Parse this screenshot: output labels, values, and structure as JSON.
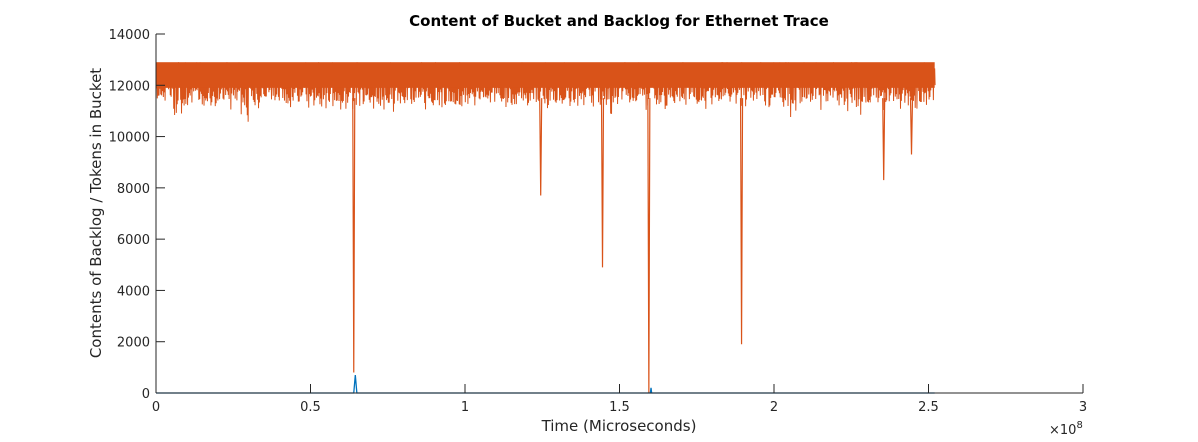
{
  "chart_data": {
    "type": "line",
    "title": "Content of Bucket and Backlog for Ethernet Trace",
    "xlabel": "Time (Microseconds)",
    "ylabel": "Contents of Backlog / Tokens in Bucket",
    "x_multiplier": {
      "base": "×10",
      "exponent": "8"
    },
    "xlim": [
      0,
      300000000
    ],
    "ylim": [
      0,
      14000
    ],
    "x_ticks": [
      0,
      50000000,
      100000000,
      150000000,
      200000000,
      250000000,
      300000000
    ],
    "x_tick_labels": [
      "0",
      "0.5",
      "1",
      "1.5",
      "2",
      "2.5",
      "3"
    ],
    "y_ticks": [
      0,
      2000,
      4000,
      6000,
      8000,
      10000,
      12000,
      14000
    ],
    "y_tick_labels": [
      "0",
      "2000",
      "4000",
      "6000",
      "8000",
      "10000",
      "12000",
      "14000"
    ],
    "grid": false,
    "series": [
      {
        "color": "#0072BD",
        "role": "backlog",
        "points": [
          [
            0,
            0
          ],
          [
            64000000,
            0
          ],
          [
            64500000,
            700
          ],
          [
            65000000,
            0
          ],
          [
            160000000,
            0
          ],
          [
            160200000,
            200
          ],
          [
            160400000,
            0
          ],
          [
            252000000,
            0
          ]
        ]
      },
      {
        "color": "#D95319",
        "role": "bucket",
        "band_top": 12900,
        "band_bottom_typical": 11200,
        "x_end": 252000000,
        "dips": [
          {
            "x": 64000000,
            "y": 800
          },
          {
            "x": 124500000,
            "y": 7700
          },
          {
            "x": 144500000,
            "y": 4900
          },
          {
            "x": 159500000,
            "y": 0
          },
          {
            "x": 189500000,
            "y": 1900
          },
          {
            "x": 235500000,
            "y": 8300
          },
          {
            "x": 244500000,
            "y": 9300
          }
        ],
        "dense_band_minima": [
          {
            "x": 5000000,
            "y": 10700
          },
          {
            "x": 30000000,
            "y": 10700
          },
          {
            "x": 145000000,
            "y": 10800
          },
          {
            "x": 207000000,
            "y": 10800
          },
          {
            "x": 230000000,
            "y": 10900
          },
          {
            "x": 250000000,
            "y": 11000
          }
        ]
      }
    ]
  }
}
